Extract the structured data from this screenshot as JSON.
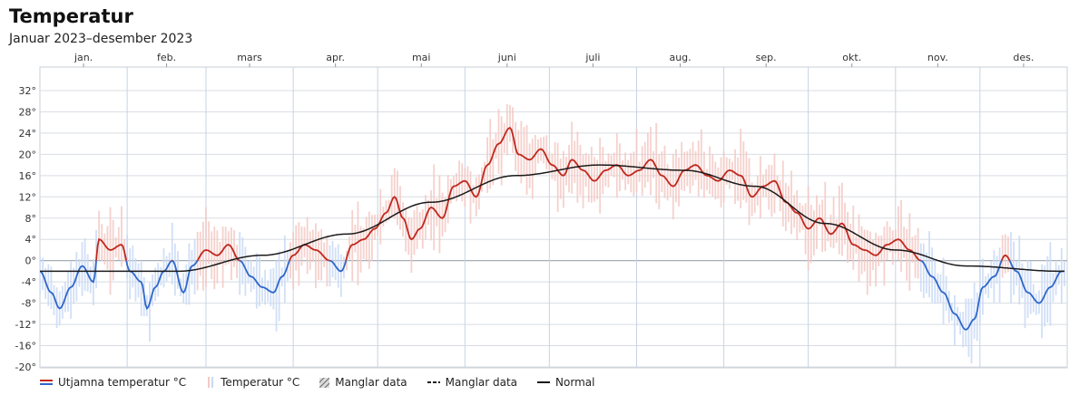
{
  "title": "Temperatur",
  "subtitle": "Januar 2023–desember 2023",
  "chart_data": {
    "type": "line",
    "y_unit": "°C",
    "ylim": [
      -20,
      34
    ],
    "yticks": [
      32,
      28,
      24,
      20,
      16,
      12,
      8,
      4,
      0,
      -4,
      -8,
      -12,
      -16,
      -20
    ],
    "months": [
      "jan.",
      "feb.",
      "mars",
      "apr.",
      "mai",
      "juni",
      "juli",
      "aug.",
      "sep.",
      "okt.",
      "nov.",
      "des."
    ],
    "grid": true,
    "legend_placement": "bottom",
    "series": [
      {
        "name": "Utjamna temperatur °C",
        "type": "line",
        "colors": {
          "above": "#c0281e",
          "below": "#2f67c9"
        },
        "points": [
          [
            1,
            -2
          ],
          [
            5,
            -6
          ],
          [
            8,
            -9
          ],
          [
            12,
            -5
          ],
          [
            16,
            -1
          ],
          [
            20,
            -4
          ],
          [
            22,
            4
          ],
          [
            26,
            2
          ],
          [
            30,
            3
          ],
          [
            33,
            -2
          ],
          [
            37,
            -4
          ],
          [
            39,
            -9
          ],
          [
            42,
            -5
          ],
          [
            45,
            -2
          ],
          [
            48,
            0
          ],
          [
            52,
            -6
          ],
          [
            55,
            -1
          ],
          [
            60,
            2
          ],
          [
            64,
            1
          ],
          [
            68,
            3
          ],
          [
            72,
            0
          ],
          [
            76,
            -3
          ],
          [
            80,
            -5
          ],
          [
            84,
            -6
          ],
          [
            87,
            -3
          ],
          [
            91,
            1
          ],
          [
            95,
            3
          ],
          [
            99,
            2
          ],
          [
            104,
            0
          ],
          [
            108,
            -2
          ],
          [
            112,
            3
          ],
          [
            116,
            4
          ],
          [
            120,
            6
          ],
          [
            124,
            9
          ],
          [
            127,
            12
          ],
          [
            130,
            8
          ],
          [
            133,
            4
          ],
          [
            136,
            6
          ],
          [
            140,
            10
          ],
          [
            144,
            8
          ],
          [
            148,
            14
          ],
          [
            152,
            15
          ],
          [
            156,
            12
          ],
          [
            160,
            18
          ],
          [
            164,
            22
          ],
          [
            168,
            25
          ],
          [
            171,
            20
          ],
          [
            175,
            19
          ],
          [
            179,
            21
          ],
          [
            183,
            18
          ],
          [
            187,
            16
          ],
          [
            190,
            19
          ],
          [
            194,
            17
          ],
          [
            198,
            15
          ],
          [
            202,
            17
          ],
          [
            206,
            18
          ],
          [
            210,
            16
          ],
          [
            214,
            17
          ],
          [
            218,
            19
          ],
          [
            222,
            16
          ],
          [
            226,
            14
          ],
          [
            230,
            17
          ],
          [
            234,
            18
          ],
          [
            238,
            16
          ],
          [
            242,
            15
          ],
          [
            246,
            17
          ],
          [
            250,
            16
          ],
          [
            254,
            12
          ],
          [
            258,
            14
          ],
          [
            262,
            15
          ],
          [
            266,
            11
          ],
          [
            270,
            9
          ],
          [
            274,
            6
          ],
          [
            278,
            8
          ],
          [
            282,
            5
          ],
          [
            286,
            7
          ],
          [
            290,
            3
          ],
          [
            294,
            2
          ],
          [
            298,
            1
          ],
          [
            302,
            3
          ],
          [
            306,
            4
          ],
          [
            310,
            2
          ],
          [
            314,
            0
          ],
          [
            318,
            -3
          ],
          [
            322,
            -6
          ],
          [
            326,
            -10
          ],
          [
            330,
            -13
          ],
          [
            333,
            -11
          ],
          [
            336,
            -5
          ],
          [
            340,
            -3
          ],
          [
            344,
            1
          ],
          [
            348,
            -2
          ],
          [
            352,
            -6
          ],
          [
            356,
            -8
          ],
          [
            360,
            -5
          ],
          [
            364,
            -2
          ]
        ]
      },
      {
        "name": "Temperatur °C",
        "type": "range-bars",
        "colors": {
          "above": "#f3c9c4",
          "below": "#c9d9f4"
        },
        "note": "daily min–max, drawn around the smoothed curve"
      },
      {
        "name": "Manglar data",
        "type": "hatched-area"
      },
      {
        "name": "Manglar data",
        "type": "dashed-line"
      },
      {
        "name": "Normal",
        "type": "line",
        "color": "#1a1a1a",
        "points": [
          [
            1,
            -2
          ],
          [
            30,
            -2
          ],
          [
            50,
            -2
          ],
          [
            80,
            1
          ],
          [
            110,
            5
          ],
          [
            140,
            11
          ],
          [
            170,
            16
          ],
          [
            200,
            18
          ],
          [
            230,
            17
          ],
          [
            255,
            14
          ],
          [
            280,
            7
          ],
          [
            305,
            2
          ],
          [
            330,
            -1
          ],
          [
            364,
            -2
          ]
        ]
      }
    ]
  },
  "legend": [
    {
      "label": "Utjamna temperatur °C",
      "icon": "double-line-red-blue"
    },
    {
      "label": "Temperatur °C",
      "icon": "double-bars-light"
    },
    {
      "label": "Manglar data",
      "icon": "hatched-square"
    },
    {
      "label": "Manglar data",
      "icon": "dashed-line"
    },
    {
      "label": "Normal",
      "icon": "black-line"
    }
  ]
}
